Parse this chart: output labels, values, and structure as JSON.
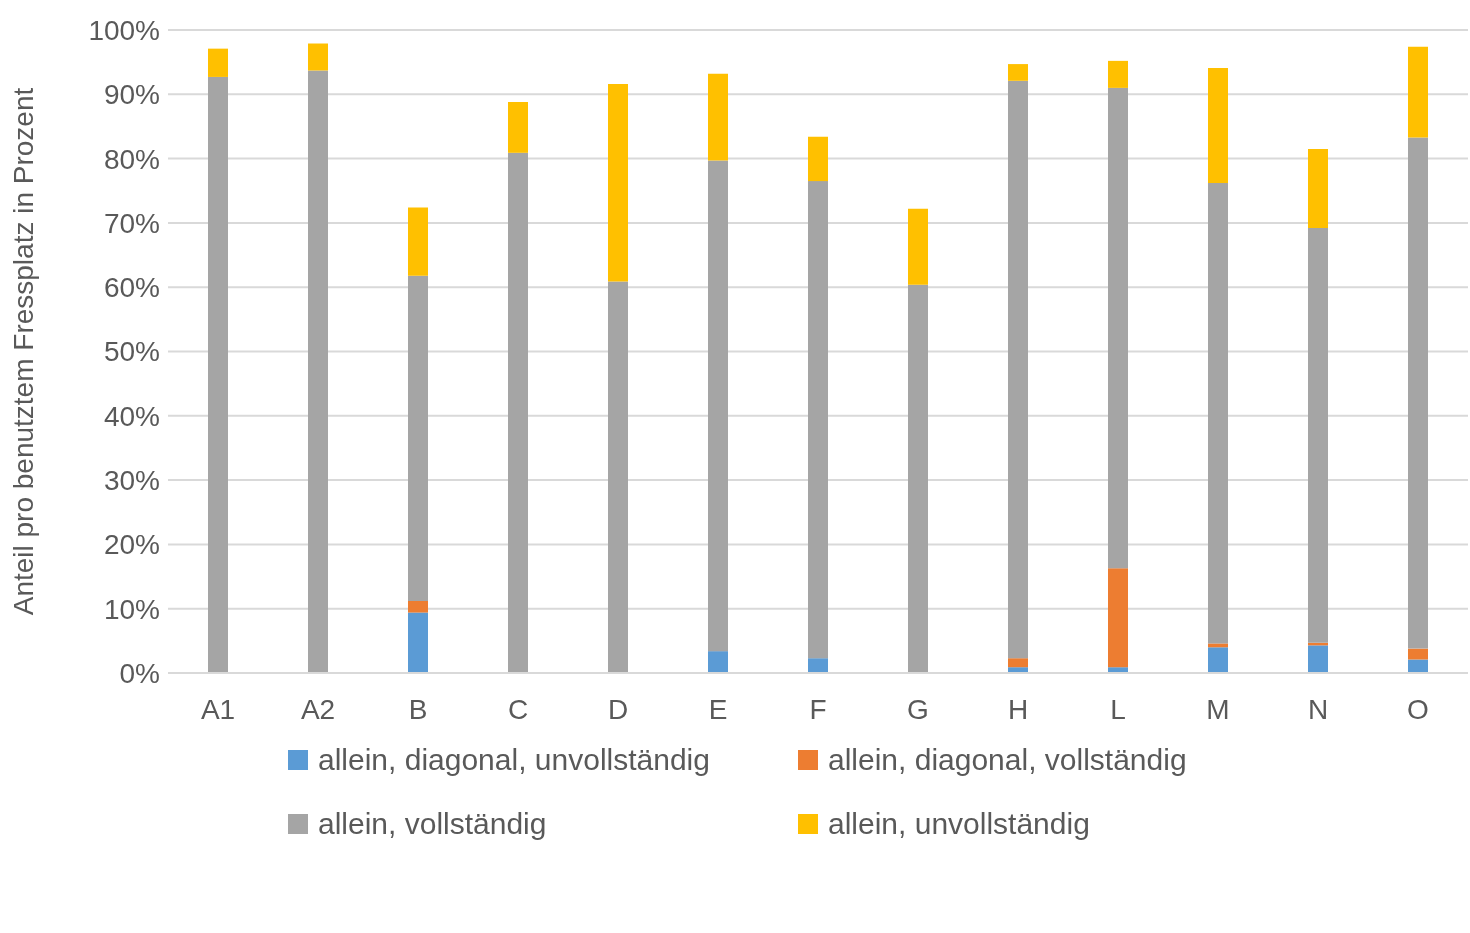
{
  "chart_data": {
    "type": "bar",
    "stacked": true,
    "ylabel": "Anteil pro benutztem Fressplatz in Prozent",
    "categories": [
      "A1",
      "A2",
      "B",
      "C",
      "D",
      "E",
      "F",
      "G",
      "H",
      "L",
      "M",
      "N",
      "O"
    ],
    "series": [
      {
        "name": "allein, diagonal, unvollständig",
        "color": "#5b9bd5",
        "values": [
          0,
          0,
          9.4,
          0,
          0,
          3.4,
          2.3,
          0,
          0.9,
          0.9,
          4.0,
          4.3,
          2.1
        ]
      },
      {
        "name": "allein, diagonal, vollständig",
        "color": "#ed7d31",
        "values": [
          0,
          0,
          1.8,
          0,
          0,
          0,
          0,
          0,
          1.4,
          15.4,
          0.6,
          0.4,
          1.7
        ]
      },
      {
        "name": "allein, vollständig",
        "color": "#a5a5a5",
        "values": [
          92.7,
          93.7,
          50.6,
          80.9,
          60.9,
          76.3,
          74.2,
          60.4,
          89.8,
          74.7,
          71.6,
          64.5,
          79.5
        ]
      },
      {
        "name": "allein, unvollständig",
        "color": "#ffc000",
        "values": [
          4.4,
          4.2,
          10.6,
          7.9,
          30.7,
          13.5,
          6.9,
          11.8,
          2.6,
          4.2,
          17.9,
          12.3,
          14.1
        ]
      }
    ],
    "ylim": [
      0,
      100
    ],
    "yticks": [
      {
        "value": 0,
        "label": "0%"
      },
      {
        "value": 10,
        "label": "10%"
      },
      {
        "value": 20,
        "label": "20%"
      },
      {
        "value": 30,
        "label": "30%"
      },
      {
        "value": 40,
        "label": "40%"
      },
      {
        "value": 50,
        "label": "50%"
      },
      {
        "value": 60,
        "label": "60%"
      },
      {
        "value": 70,
        "label": "70%"
      },
      {
        "value": 80,
        "label": "80%"
      },
      {
        "value": 90,
        "label": "90%"
      },
      {
        "value": 100,
        "label": "100%"
      }
    ],
    "grid": "y",
    "legend": "bottom"
  }
}
